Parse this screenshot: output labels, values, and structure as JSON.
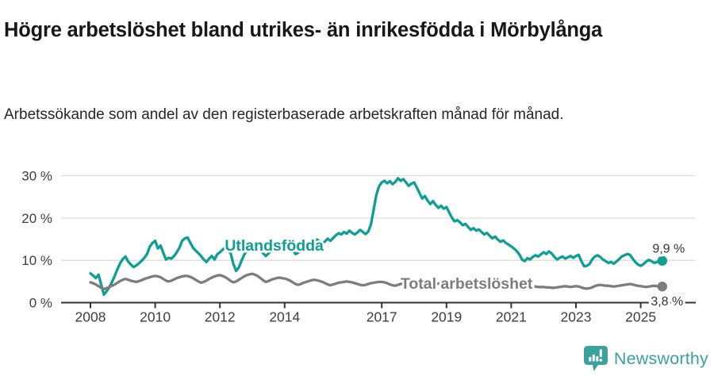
{
  "header": {
    "title": "Högre arbetslöshet bland utrikes- än inrikesfödda i Mörbylånga",
    "subtitle": "Arbetssökande som andel av den registerbaserade arbetskraften månad för månad."
  },
  "footer": {
    "brand": "Newsworthy"
  },
  "colors": {
    "accent_teal": "#0d9e94",
    "line_gray": "#7d7d7d",
    "grid": "#dcdcdc",
    "axis": "#333333",
    "tick_text": "#3d3d3d",
    "value_label_text": "#333333",
    "logo_teal": "#3aa19e"
  },
  "chart_data": {
    "type": "line",
    "title": "Högre arbetslöshet bland utrikes- än inrikesfödda i Mörbylånga",
    "subtitle": "Arbetssökande som andel av den registerbaserade arbetskraften månad för månad.",
    "xlabel": "",
    "ylabel": "",
    "ylim": [
      0,
      30
    ],
    "grid": true,
    "x_start_year": 2008,
    "x_months_per_step": 1,
    "yticks": [
      {
        "value": 0,
        "label": "0 %"
      },
      {
        "value": 10,
        "label": "10 %"
      },
      {
        "value": 20,
        "label": "20 %"
      },
      {
        "value": 30,
        "label": "30 %"
      }
    ],
    "xticks": [
      {
        "year": 2008,
        "label": "2008"
      },
      {
        "year": 2010,
        "label": "2010"
      },
      {
        "year": 2012,
        "label": "2012"
      },
      {
        "year": 2014,
        "label": "2014"
      },
      {
        "year": 2017,
        "label": "2017"
      },
      {
        "year": 2019,
        "label": "2019"
      },
      {
        "year": 2021,
        "label": "2021"
      },
      {
        "year": 2023,
        "label": "2023"
      },
      {
        "year": 2025,
        "label": "2025"
      }
    ],
    "series": [
      {
        "name": "Utlandsfödda",
        "color": "#0d9e94",
        "inline_label": "Utlandsfödda",
        "inline_label_x": 2012.15,
        "inline_label_y": 13.6,
        "end_label": "9,9 %",
        "end_value": 9.9,
        "values": [
          6.9,
          6.4,
          5.8,
          6.6,
          4.2,
          1.9,
          2.7,
          3.6,
          4.9,
          6.3,
          7.9,
          9.3,
          10.3,
          10.9,
          9.7,
          9.0,
          8.4,
          8.8,
          9.3,
          9.9,
          10.6,
          11.5,
          13.2,
          14.1,
          14.6,
          12.8,
          13.5,
          11.8,
          10.2,
          10.6,
          10.4,
          11.0,
          11.9,
          13.0,
          14.6,
          15.2,
          15.4,
          14.2,
          13.0,
          12.3,
          11.7,
          11.0,
          10.2,
          9.6,
          10.4,
          11.0,
          10.2,
          11.4,
          11.9,
          12.5,
          13.1,
          12.4,
          11.6,
          9.1,
          7.5,
          8.3,
          9.9,
          11.3,
          12.4,
          12.9,
          13.3,
          12.7,
          12.1,
          12.5,
          11.7,
          11.0,
          11.6,
          12.2,
          12.8,
          13.2,
          12.4,
          13.0,
          13.8,
          14.3,
          13.6,
          12.4,
          11.5,
          11.8,
          12.5,
          13.1,
          13.7,
          14.2,
          13.8,
          14.4,
          14.9,
          14.4,
          13.9,
          14.5,
          15.1,
          14.6,
          15.3,
          15.9,
          16.4,
          16.1,
          16.7,
          16.3,
          17.0,
          16.5,
          16.1,
          16.6,
          17.2,
          16.7,
          16.2,
          16.8,
          18.5,
          22.0,
          25.5,
          27.5,
          28.4,
          28.8,
          28.2,
          28.7,
          28.0,
          28.5,
          29.4,
          28.8,
          29.2,
          28.4,
          27.6,
          28.1,
          28.4,
          27.2,
          25.9,
          24.6,
          25.2,
          24.1,
          23.3,
          24.0,
          23.1,
          22.4,
          22.9,
          22.2,
          22.6,
          21.3,
          20.1,
          19.2,
          19.5,
          19.0,
          18.3,
          18.6,
          17.9,
          17.2,
          17.6,
          17.0,
          17.3,
          16.7,
          16.1,
          16.5,
          15.8,
          15.2,
          15.6,
          14.9,
          14.4,
          14.7,
          14.1,
          13.7,
          13.3,
          12.8,
          12.2,
          11.4,
          10.2,
          9.8,
          10.5,
          10.2,
          10.8,
          11.2,
          10.9,
          11.4,
          11.9,
          11.5,
          12.1,
          11.6,
          10.8,
          10.2,
          10.6,
          10.9,
          10.4,
          10.7,
          11.0,
          10.6,
          11.0,
          11.3,
          9.8,
          8.6,
          8.7,
          9.1,
          10.2,
          10.9,
          11.2,
          10.8,
          10.2,
          9.8,
          9.4,
          9.6,
          9.2,
          9.7,
          10.3,
          10.9,
          11.2,
          11.5,
          11.3,
          10.4,
          9.6,
          9.0,
          8.7,
          9.1,
          9.7,
          10.1,
          9.8,
          9.4,
          9.6,
          9.8,
          9.9
        ]
      },
      {
        "name": "Total arbetslöshet",
        "color": "#7d7d7d",
        "inline_label": "Total arbetslöshet",
        "inline_label_x": 2017.58,
        "inline_label_y": 4.6,
        "end_label": "3,8 %",
        "end_value": 3.8,
        "values": [
          4.8,
          4.6,
          4.3,
          3.9,
          3.5,
          3.2,
          3.4,
          3.7,
          4.0,
          4.3,
          4.7,
          5.1,
          5.4,
          5.6,
          5.4,
          5.2,
          5.0,
          4.9,
          5.1,
          5.3,
          5.6,
          5.8,
          6.0,
          6.2,
          6.3,
          6.2,
          6.0,
          5.6,
          5.2,
          5.0,
          5.2,
          5.5,
          5.8,
          6.0,
          6.2,
          6.3,
          6.3,
          6.1,
          5.8,
          5.4,
          5.0,
          4.7,
          4.9,
          5.2,
          5.6,
          5.9,
          6.2,
          6.4,
          6.5,
          6.3,
          6.0,
          5.6,
          5.1,
          4.8,
          5.0,
          5.4,
          5.8,
          6.2,
          6.5,
          6.7,
          6.8,
          6.6,
          6.3,
          5.8,
          5.3,
          4.9,
          5.1,
          5.4,
          5.6,
          5.8,
          5.9,
          5.8,
          5.7,
          5.5,
          5.2,
          4.8,
          4.4,
          4.2,
          4.4,
          4.7,
          4.9,
          5.1,
          5.3,
          5.4,
          5.3,
          5.1,
          4.9,
          4.6,
          4.3,
          4.1,
          4.3,
          4.5,
          4.7,
          4.8,
          4.9,
          5.0,
          4.9,
          4.8,
          4.6,
          4.4,
          4.2,
          4.1,
          4.2,
          4.4,
          4.6,
          4.7,
          4.8,
          4.9,
          4.9,
          4.8,
          4.6,
          4.3,
          4.1,
          4.0,
          4.2,
          4.4,
          4.5,
          4.6,
          4.7,
          4.8,
          4.8,
          4.7,
          4.5,
          4.3,
          4.1,
          4.0,
          4.1,
          4.3,
          4.4,
          4.5,
          4.6,
          4.7,
          4.7,
          4.6,
          4.5,
          4.3,
          4.2,
          4.1,
          4.2,
          4.3,
          4.4,
          4.5,
          4.6,
          4.7,
          4.8,
          4.9,
          5.1,
          5.4,
          5.5,
          5.4,
          5.3,
          5.2,
          5.1,
          5.0,
          4.9,
          4.8,
          4.8,
          4.7,
          4.6,
          4.4,
          4.3,
          4.1,
          4.0,
          3.9,
          3.8,
          3.8,
          3.7,
          3.7,
          3.7,
          3.6,
          3.6,
          3.5,
          3.5,
          3.6,
          3.7,
          3.8,
          3.9,
          3.8,
          3.7,
          3.8,
          3.9,
          3.8,
          3.6,
          3.4,
          3.3,
          3.4,
          3.6,
          3.9,
          4.1,
          4.2,
          4.1,
          4.0,
          4.0,
          3.9,
          3.8,
          3.9,
          4.0,
          4.1,
          4.2,
          4.3,
          4.4,
          4.3,
          4.1,
          4.0,
          3.9,
          3.8,
          3.7,
          3.8,
          3.9,
          4.0,
          3.9,
          3.8,
          3.8
        ]
      }
    ]
  }
}
